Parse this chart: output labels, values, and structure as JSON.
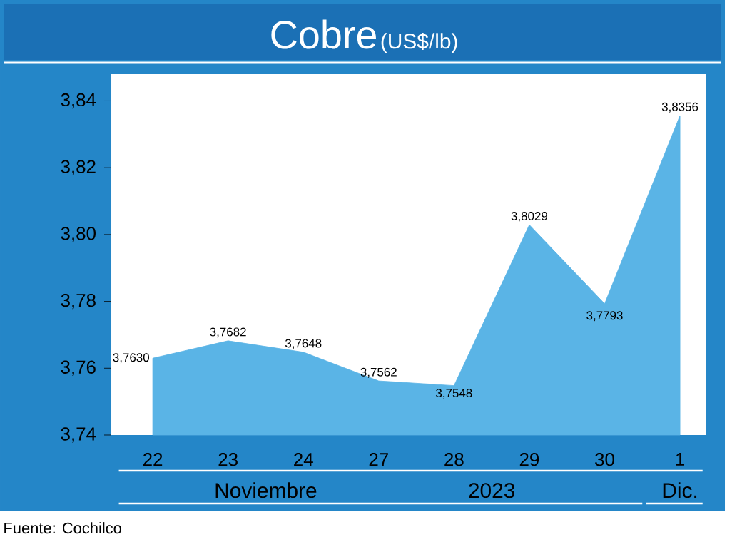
{
  "chart_data": {
    "type": "area",
    "title": "Cobre",
    "subtitle": "(US$/lb)",
    "categories": [
      "22",
      "23",
      "24",
      "27",
      "28",
      "29",
      "30",
      "1"
    ],
    "values": [
      3.763,
      3.7682,
      3.7648,
      3.7562,
      3.7548,
      3.8029,
      3.7793,
      3.8356
    ],
    "value_labels": [
      "3,7630",
      "3,7682",
      "3,7648",
      "3,7562",
      "3,7548",
      "3,8029",
      "3,7793",
      "3,8356"
    ],
    "color": "#5ab4e6",
    "ylim": [
      3.74,
      3.848
    ],
    "yticks": [
      {
        "value": 3.74,
        "label": "3,74"
      },
      {
        "value": 3.76,
        "label": "3,76"
      },
      {
        "value": 3.78,
        "label": "3,78"
      },
      {
        "value": 3.8,
        "label": "3,80"
      },
      {
        "value": 3.82,
        "label": "3,82"
      },
      {
        "value": 3.84,
        "label": "3,84"
      }
    ],
    "grid": false,
    "annotations": [
      "Noviembre",
      "2023",
      "Dic.",
      "Fuente: Cochilco"
    ]
  }
}
